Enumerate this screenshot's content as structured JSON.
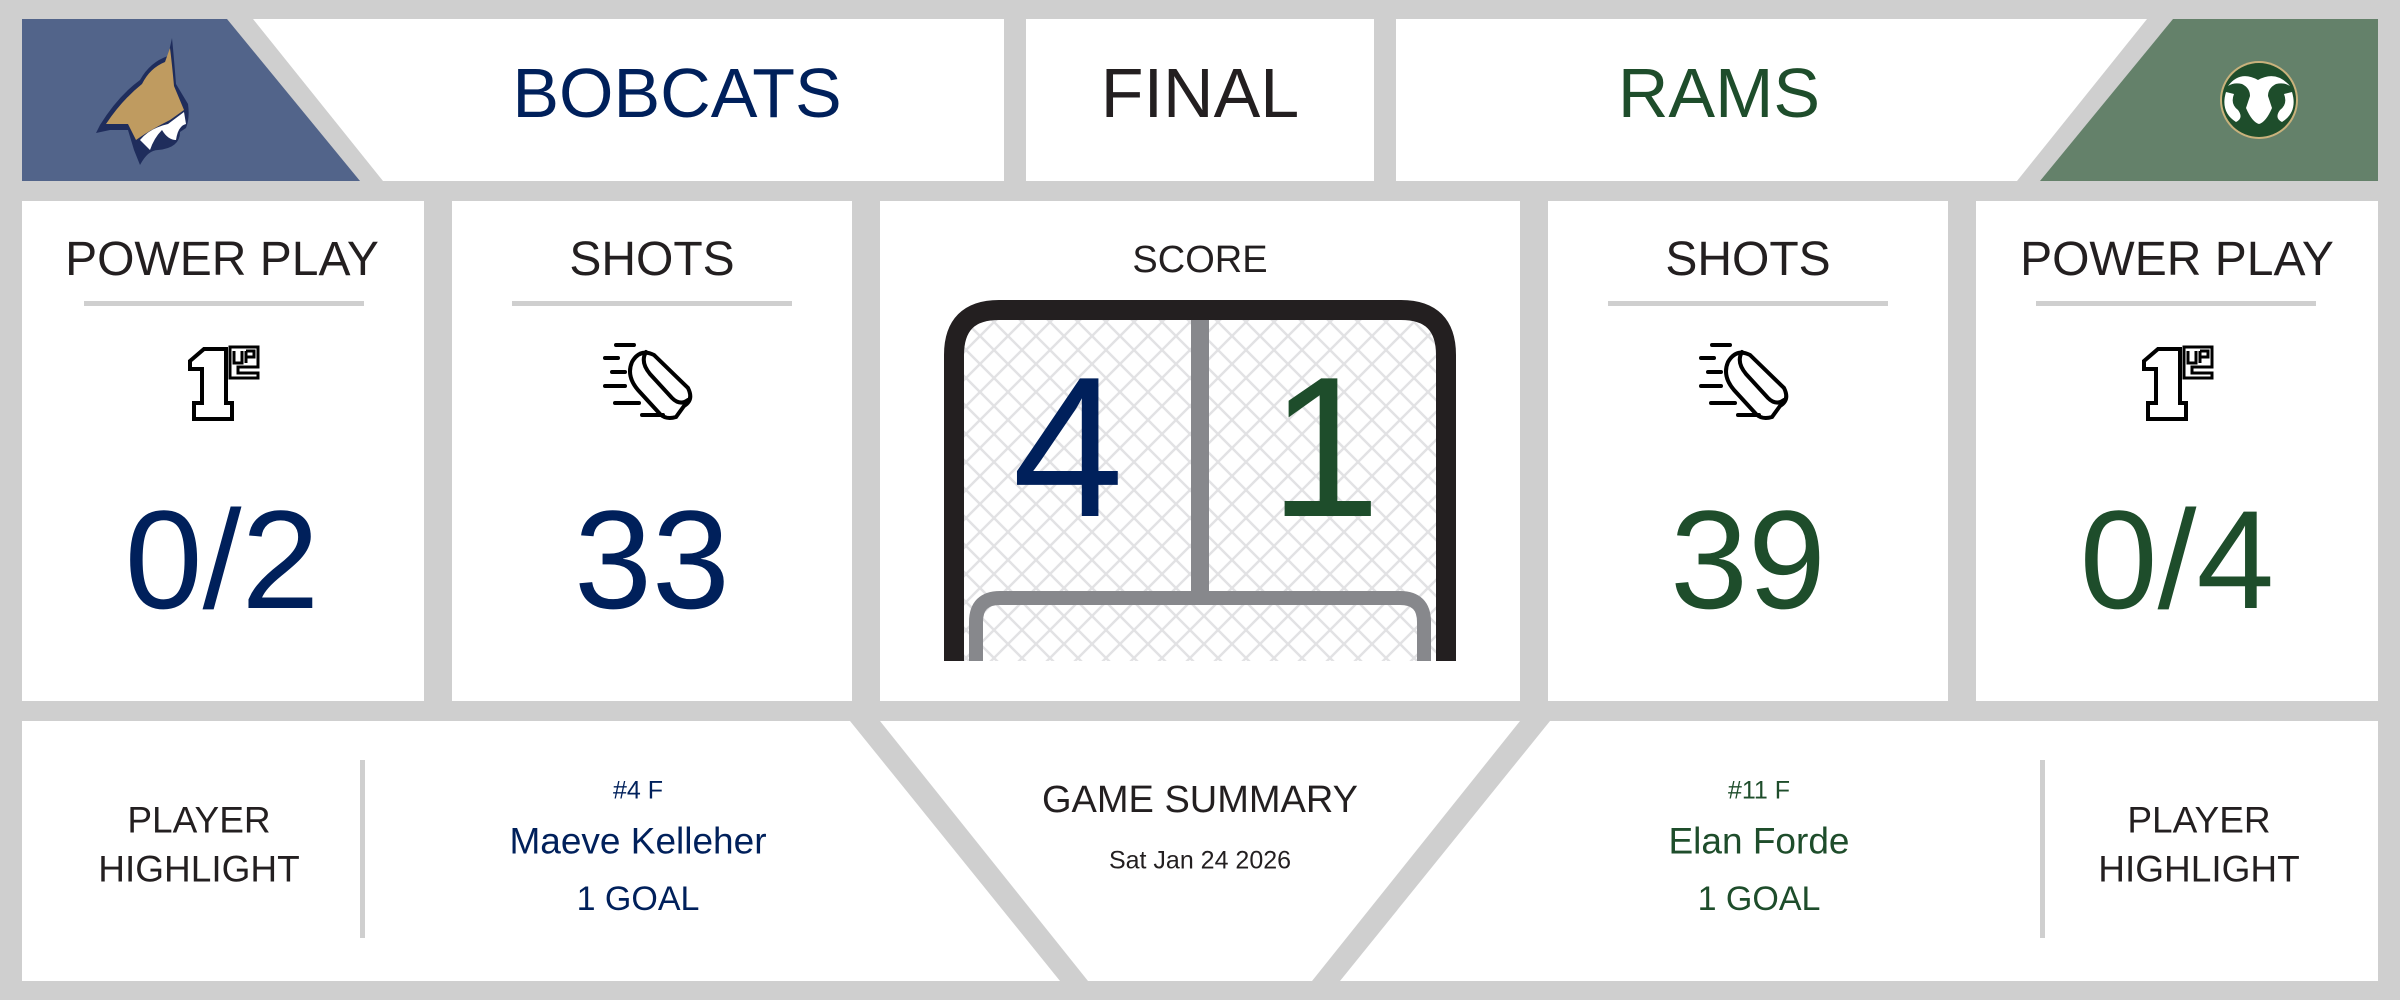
{
  "header": {
    "home_team": "BOBCATS",
    "status": "FINAL",
    "away_team": "RAMS",
    "home_logo": "bobcat-logo",
    "away_logo": "ram-logo"
  },
  "colors": {
    "home": "#00205b",
    "away": "#1e4d2b",
    "home_panel": "#52648a",
    "away_panel": "#64816a",
    "background": "#cfcfcf"
  },
  "stats": {
    "home_power_play": {
      "label": "POWER PLAY",
      "icon": "1up-icon",
      "value": "0/2"
    },
    "home_shots": {
      "label": "SHOTS",
      "icon": "puck-icon",
      "value": "33"
    },
    "score": {
      "label": "SCORE",
      "home": "4",
      "away": "1",
      "icon": "hockey-net-icon"
    },
    "away_shots": {
      "label": "SHOTS",
      "icon": "puck-icon",
      "value": "39"
    },
    "away_power_play": {
      "label": "POWER PLAY",
      "icon": "1up-icon",
      "value": "0/4"
    }
  },
  "footer": {
    "home_highlight": {
      "label_line1": "PLAYER",
      "label_line2": "HIGHLIGHT",
      "number": "#4 F",
      "name": "Maeve Kelleher",
      "stat": "1 GOAL"
    },
    "summary": {
      "title": "GAME SUMMARY",
      "date": "Sat Jan 24 2026"
    },
    "away_highlight": {
      "label_line1": "PLAYER",
      "label_line2": "HIGHLIGHT",
      "number": "#11 F",
      "name": "Elan Forde",
      "stat": "1 GOAL"
    }
  }
}
